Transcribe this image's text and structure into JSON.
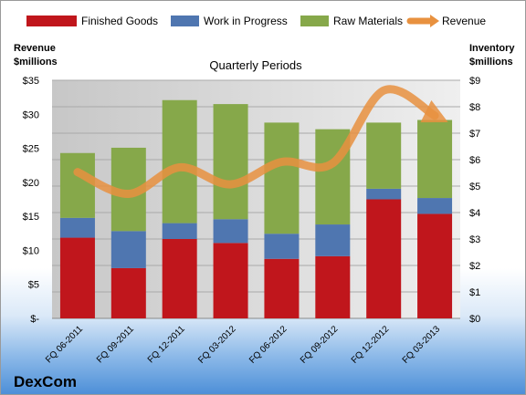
{
  "chart_data": {
    "type": "bar",
    "subtitle": "Quarterly Periods",
    "ylabel_left": "Revenue\n$millions",
    "ylabel_right": "Inventory\n$millions",
    "categories": [
      "FQ 06-2011",
      "FQ 09-2011",
      "FQ 12-2011",
      "FQ 03-2012",
      "FQ 06-2012",
      "FQ 09-2012",
      "FQ 12-2012",
      "FQ 03-2013"
    ],
    "series": [
      {
        "name": "Finished Goods",
        "kind": "stacked-bar",
        "axis": "right",
        "color": "#c0161c",
        "values": [
          3.05,
          1.9,
          3.0,
          2.85,
          2.25,
          2.35,
          4.5,
          3.95
        ]
      },
      {
        "name": "Work in Progress",
        "kind": "stacked-bar",
        "axis": "right",
        "color": "#4f76b0",
        "values": [
          0.75,
          1.4,
          0.6,
          0.9,
          0.95,
          1.2,
          0.4,
          0.6
        ]
      },
      {
        "name": "Raw Materials",
        "kind": "stacked-bar",
        "axis": "right",
        "color": "#86a84a",
        "values": [
          2.45,
          3.15,
          4.65,
          4.35,
          4.2,
          3.6,
          2.5,
          2.95
        ]
      },
      {
        "name": "Revenue",
        "kind": "line",
        "axis": "left",
        "color": "#e8913f",
        "values": [
          21.5,
          18.3,
          22.2,
          19.7,
          23.0,
          22.8,
          33.5,
          29.8
        ]
      }
    ],
    "ylim_left": [
      0,
      35
    ],
    "ylim_right": [
      0,
      9
    ],
    "yticks_left": [
      "$-",
      "$5",
      "$10",
      "$15",
      "$20",
      "$25",
      "$30",
      "$35"
    ],
    "yticks_right": [
      "$0",
      "$1",
      "$2",
      "$3",
      "$4",
      "$5",
      "$6",
      "$7",
      "$8",
      "$9"
    ],
    "grid": true,
    "legend_position": "top"
  },
  "brand": {
    "name": "DexCom"
  }
}
